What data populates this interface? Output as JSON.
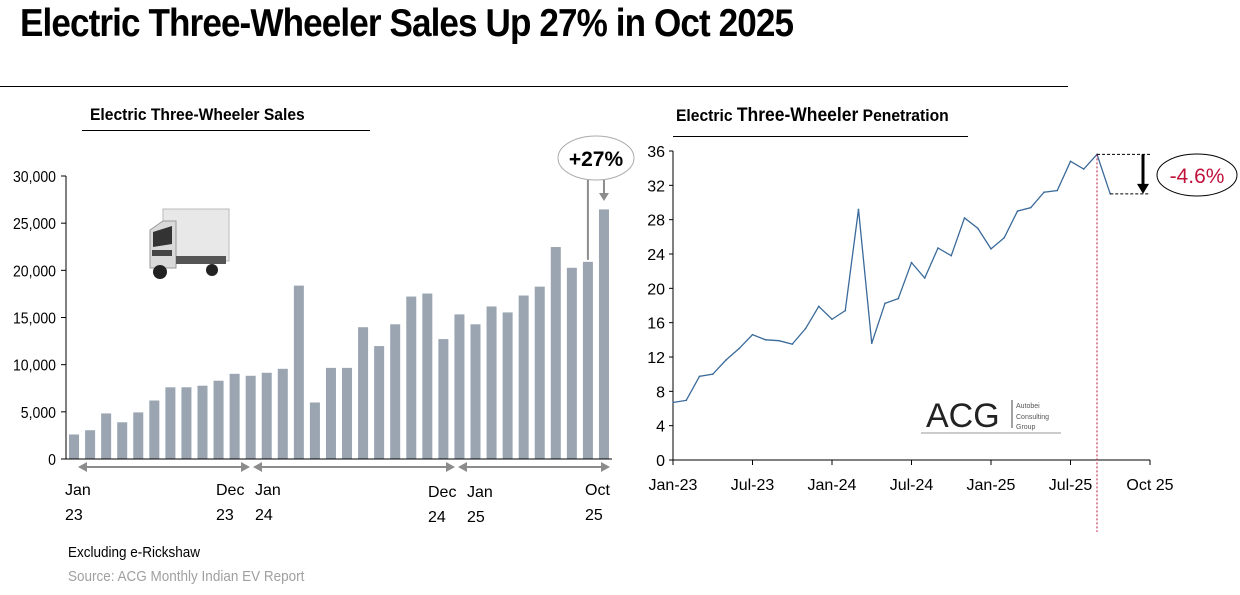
{
  "title": "Electric Three-Wheeler Sales Up 27% in Oct 2025",
  "footnote": "Excluding e-Rickshaw",
  "source": "Source: ACG Monthly Indian EV Report",
  "logo": {
    "mark": "ACG",
    "text": [
      "Autobei",
      "Consulting",
      "Group"
    ]
  },
  "colors": {
    "bar": "#9aa5b1",
    "line": "#3a6a9a",
    "highlight": "#c0143c",
    "annotation_gray": "#8c8c8c"
  },
  "chart_data": [
    {
      "type": "bar",
      "title": "Electric Three-Wheeler Sales",
      "ylim": [
        0,
        30000
      ],
      "yticks": [
        "0",
        "5,000",
        "10,000",
        "15,000",
        "20,000",
        "25,000",
        "30,000"
      ],
      "period_labels": [
        {
          "top": "Jan",
          "bottom": "23"
        },
        {
          "top": "Dec",
          "bottom": "23"
        },
        {
          "top": "Jan",
          "bottom": "24"
        },
        {
          "top": "Dec",
          "bottom": "24"
        },
        {
          "top": "Jan",
          "bottom": "25"
        },
        {
          "top": "Oct",
          "bottom": "25"
        }
      ],
      "categories": [
        "Jan-23",
        "Feb-23",
        "Mar-23",
        "Apr-23",
        "May-23",
        "Jun-23",
        "Jul-23",
        "Aug-23",
        "Sep-23",
        "Oct-23",
        "Nov-23",
        "Dec-23",
        "Jan-24",
        "Feb-24",
        "Mar-24",
        "Apr-24",
        "May-24",
        "Jun-24",
        "Jul-24",
        "Aug-24",
        "Sep-24",
        "Oct-24",
        "Nov-24",
        "Dec-24",
        "Jan-25",
        "Feb-25",
        "Mar-25",
        "Apr-25",
        "May-25",
        "Jun-25",
        "Jul-25",
        "Aug-25",
        "Sep-25",
        "Oct-25"
      ],
      "values": [
        2600,
        3050,
        4830,
        3890,
        4940,
        6200,
        7600,
        7600,
        7770,
        8300,
        9030,
        8820,
        9140,
        9560,
        18380,
        5990,
        9660,
        9660,
        13970,
        11970,
        14280,
        17220,
        17540,
        12710,
        15330,
        14280,
        16170,
        15540,
        17330,
        18270,
        22470,
        20270,
        20900,
        26460
      ],
      "annotation": "+27%"
    },
    {
      "type": "line",
      "title_parts": [
        "Electric ",
        "Three-Wheeler",
        " Penetration"
      ],
      "ylim": [
        0,
        36
      ],
      "yticks": [
        "0",
        "4",
        "8",
        "12",
        "16",
        "20",
        "24",
        "28",
        "32",
        "36"
      ],
      "xticks": [
        "Jan-23",
        "Jul-23",
        "Jan-24",
        "Jul-24",
        "Jan-25",
        "Jul-25",
        "Oct 25"
      ],
      "x": [
        "Jan-23",
        "Feb-23",
        "Mar-23",
        "Apr-23",
        "May-23",
        "Jun-23",
        "Jul-23",
        "Aug-23",
        "Sep-23",
        "Oct-23",
        "Nov-23",
        "Dec-23",
        "Jan-24",
        "Feb-24",
        "Mar-24",
        "Apr-24",
        "May-24",
        "Jun-24",
        "Jul-24",
        "Aug-24",
        "Sep-24",
        "Oct-24",
        "Nov-24",
        "Dec-24",
        "Jan-25",
        "Feb-25",
        "Mar-25",
        "Apr-25",
        "May-25",
        "Jun-25",
        "Jul-25",
        "Aug-25",
        "Sep-25",
        "Oct-25"
      ],
      "values": [
        6.7,
        6.95,
        9.75,
        10.0,
        11.65,
        13.0,
        14.6,
        14.0,
        13.9,
        13.5,
        15.3,
        17.9,
        16.4,
        17.4,
        29.2,
        13.6,
        18.25,
        18.8,
        23.0,
        21.2,
        24.7,
        23.8,
        28.2,
        27.0,
        24.6,
        25.9,
        29.0,
        29.4,
        31.2,
        31.4,
        34.8,
        33.9,
        35.6,
        31.0
      ],
      "annotation": "-4.6%"
    }
  ]
}
